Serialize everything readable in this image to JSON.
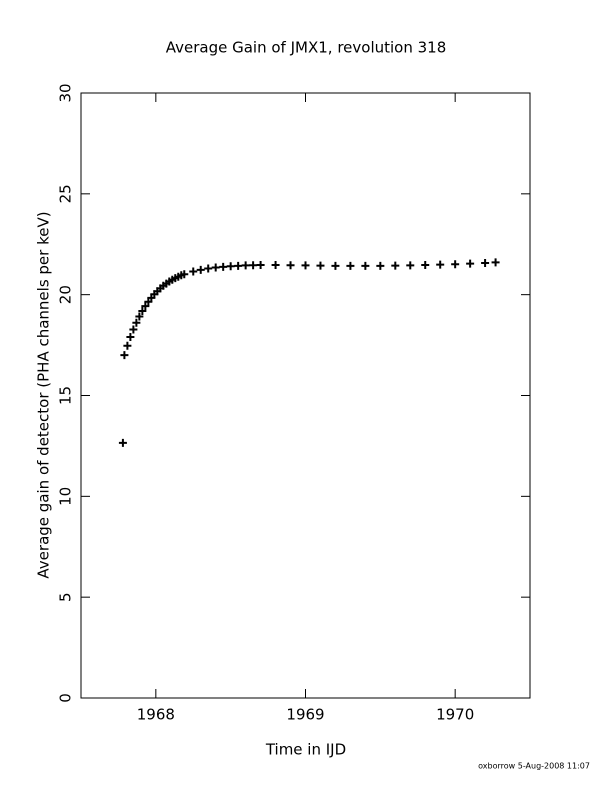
{
  "chart_data": {
    "type": "scatter",
    "title": "Average Gain of JMX1, revolution 318",
    "x_label": "Time in IJD",
    "y_label": "Average gain of detector (PHA channels per keV)",
    "footer": "oxborrow  5-Aug-2008 11:07",
    "xlim": [
      1967.5,
      1970.5
    ],
    "xticks": [
      1968,
      1969,
      1970
    ],
    "ylim": [
      0,
      30
    ],
    "yticks": [
      0,
      5,
      10,
      15,
      20,
      25,
      30
    ],
    "color": "#000000",
    "marker": "plus",
    "x": [
      1967.78,
      1967.79,
      1967.81,
      1967.83,
      1967.85,
      1967.87,
      1967.89,
      1967.91,
      1967.93,
      1967.95,
      1967.97,
      1967.99,
      1968.01,
      1968.03,
      1968.05,
      1968.07,
      1968.09,
      1968.11,
      1968.13,
      1968.15,
      1968.17,
      1968.19,
      1968.25,
      1968.3,
      1968.35,
      1968.4,
      1968.45,
      1968.5,
      1968.55,
      1968.6,
      1968.65,
      1968.7,
      1968.8,
      1968.9,
      1969.0,
      1969.1,
      1969.2,
      1969.3,
      1969.4,
      1969.5,
      1969.6,
      1969.7,
      1969.8,
      1969.9,
      1970.0,
      1970.1,
      1970.2,
      1970.27
    ],
    "values": [
      12.65,
      17.0,
      17.47,
      17.9,
      18.27,
      18.61,
      18.92,
      19.19,
      19.43,
      19.65,
      19.84,
      20.02,
      20.17,
      20.31,
      20.44,
      20.55,
      20.65,
      20.74,
      20.82,
      20.89,
      20.96,
      21.01,
      21.15,
      21.23,
      21.3,
      21.35,
      21.38,
      21.41,
      21.43,
      21.45,
      21.46,
      21.47,
      21.47,
      21.46,
      21.45,
      21.44,
      21.43,
      21.43,
      21.43,
      21.43,
      21.44,
      21.45,
      21.47,
      21.49,
      21.51,
      21.54,
      21.57,
      21.6
    ]
  }
}
